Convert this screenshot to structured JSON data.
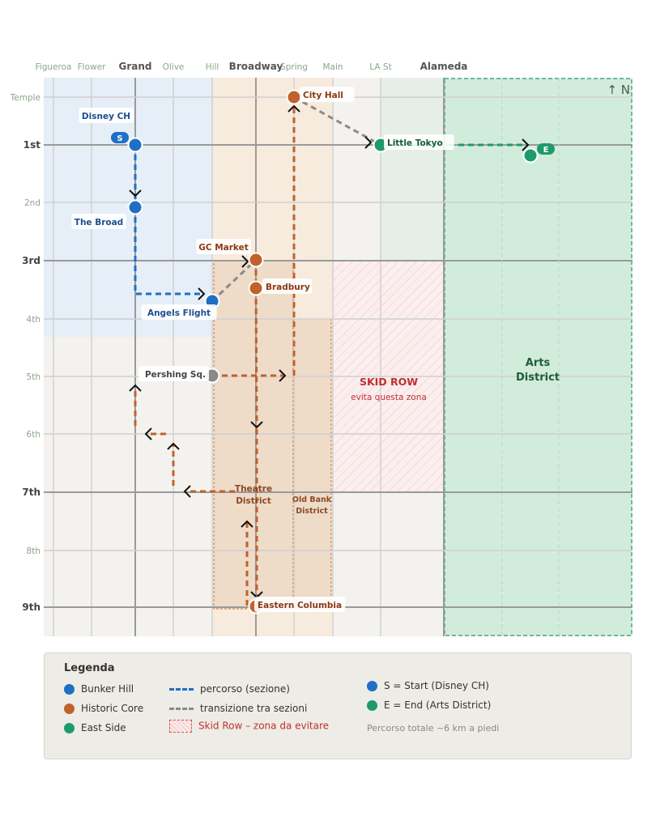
{
  "colors": {
    "bunker_hill": "#1f6fc5",
    "historic_core": "#c0622c",
    "east_side": "#1e9a6e",
    "transition": "#8a8a8a",
    "skid_row": "#c03030"
  },
  "map": {
    "compass": "↑ N",
    "streets_ns": [
      {
        "name": "Figueroa",
        "major": false
      },
      {
        "name": "Flower",
        "major": false
      },
      {
        "name": "Grand",
        "major": true
      },
      {
        "name": "Olive",
        "major": false
      },
      {
        "name": "Hill",
        "major": false
      },
      {
        "name": "Broadway",
        "major": true
      },
      {
        "name": "Spring",
        "major": false
      },
      {
        "name": "Main",
        "major": false
      },
      {
        "name": "LA St",
        "major": false
      },
      {
        "name": "Alameda",
        "major": true
      }
    ],
    "streets_ew": [
      {
        "name": "Temple",
        "major": false
      },
      {
        "name": "1st",
        "major": true
      },
      {
        "name": "2nd",
        "major": false
      },
      {
        "name": "3rd",
        "major": true
      },
      {
        "name": "4th",
        "major": false
      },
      {
        "name": "5th",
        "major": false
      },
      {
        "name": "6th",
        "major": false
      },
      {
        "name": "7th",
        "major": true
      },
      {
        "name": "8th",
        "major": false
      },
      {
        "name": "9th",
        "major": true
      }
    ],
    "zones": {
      "skid_row_title": "SKID ROW",
      "skid_row_subtitle": "evita questa zona",
      "arts_district_line1": "Arts",
      "arts_district_line2": "District",
      "theatre_district_line1": "Theatre",
      "theatre_district_line2": "District",
      "old_bank_line1": "Old Bank",
      "old_bank_line2": "District"
    },
    "stops": [
      {
        "id": "disney",
        "name": "Disney CH",
        "group": "bunker_hill",
        "badge": "S"
      },
      {
        "id": "broad",
        "name": "The Broad",
        "group": "bunker_hill"
      },
      {
        "id": "angels",
        "name": "Angels Flight",
        "group": "bunker_hill"
      },
      {
        "id": "gc",
        "name": "GC Market",
        "group": "historic_core"
      },
      {
        "id": "bradbury",
        "name": "Bradbury",
        "group": "historic_core"
      },
      {
        "id": "cityhall",
        "name": "City Hall",
        "group": "historic_core"
      },
      {
        "id": "pershing",
        "name": "Pershing Sq.",
        "group": "transition"
      },
      {
        "id": "eastcol",
        "name": "Eastern Columbia",
        "group": "historic_core"
      },
      {
        "id": "ltokyo",
        "name": "Little Tokyo",
        "group": "east_side"
      },
      {
        "id": "arts",
        "name": "",
        "group": "east_side",
        "badge": "E"
      }
    ]
  },
  "legend": {
    "title": "Legenda",
    "groups": [
      "Bunker Hill",
      "Historic Core",
      "East Side"
    ],
    "route_section": "percorso (sezione)",
    "route_transition": "transizione tra sezioni",
    "skid_row": "Skid Row – zona da evitare",
    "start": "S = Start (Disney CH)",
    "end": "E = End (Arts District)",
    "total": "Percorso totale ~6 km a piedi"
  }
}
